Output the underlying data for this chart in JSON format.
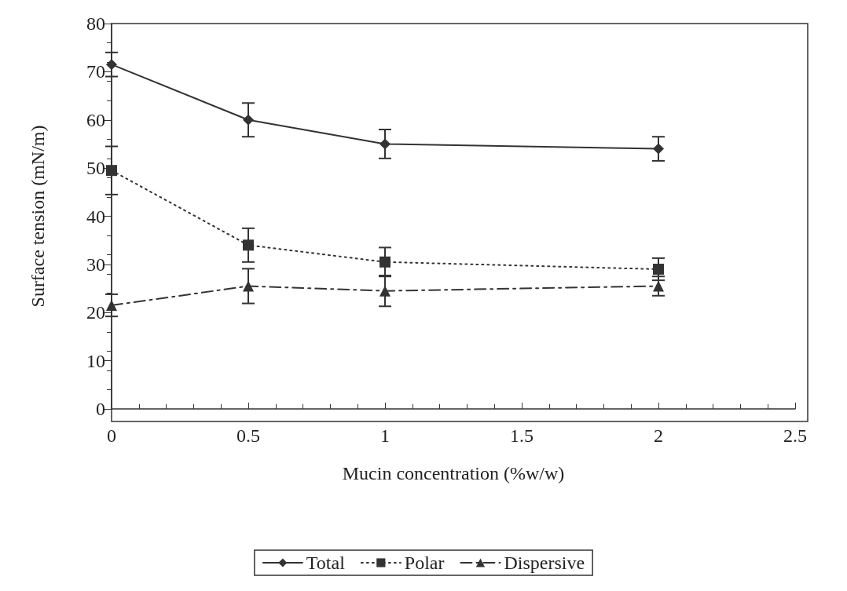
{
  "chart_data": {
    "type": "line",
    "xlabel": "Mucin concentration (%w/w)",
    "ylabel": "Surface tension (mN/m)",
    "x": [
      0,
      0.5,
      1,
      2
    ],
    "series": [
      {
        "name": "Total",
        "color": "#333333",
        "marker": "diamond",
        "line_style": "solid",
        "values": [
          71.5,
          60,
          55,
          54
        ],
        "errors": [
          2.5,
          3.5,
          3,
          2.5
        ]
      },
      {
        "name": "Polar",
        "color": "#333333",
        "marker": "square",
        "line_style": "dotted",
        "values": [
          49.5,
          34,
          30.5,
          29
        ],
        "errors": [
          5,
          3.5,
          3,
          2.3
        ]
      },
      {
        "name": "Dispersive",
        "color": "#333333",
        "marker": "triangle",
        "line_style": "dashed",
        "values": [
          21.5,
          25.5,
          24.5,
          25.5
        ],
        "errors": [
          2.3,
          3.6,
          3.2,
          2
        ]
      }
    ],
    "xlim": [
      0,
      2.5
    ],
    "xticks": [
      0,
      0.5,
      1,
      1.5,
      2,
      2.5
    ],
    "ylim": [
      0,
      80
    ],
    "yticks": [
      0,
      10,
      20,
      30,
      40,
      50,
      60,
      70,
      80
    ],
    "grid": false,
    "legend": "bottom"
  }
}
